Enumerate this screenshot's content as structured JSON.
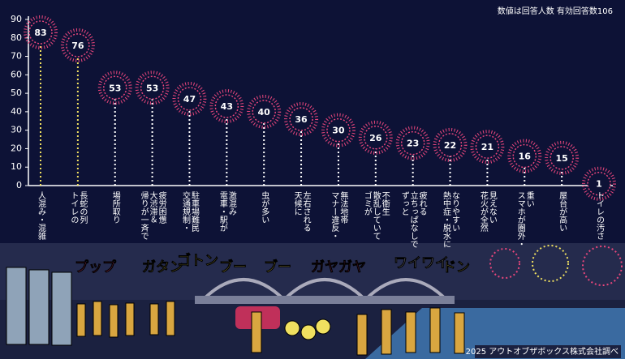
{
  "chart_data": {
    "type": "lollipop",
    "note": "数値は回答人数 有効回答数106",
    "source": "2025 アウトオブザボックス株式会社調べ",
    "categories": [
      "人混み・混雑",
      "トイレの\n長蛇の列",
      "場所取り",
      "帰りが一斉で\n大渋滞＆\n疲労困憊",
      "交通規制・\n駐車場難民",
      "電車・駅が\n激混み",
      "虫が多い",
      "天候に\n左右される",
      "マナー違反・\n無法地帯",
      "ゴミが\n散乱していて\n不衛生",
      "ずっと\n立ちっぱなしで\n疲れる",
      "熱中症・脱水に\nなりやすい",
      "花火が全然\n見えない",
      "スマホが圏外・\n重い",
      "屋台が高い",
      "トイレの汚さ"
    ],
    "values": [
      83,
      76,
      53,
      53,
      47,
      43,
      40,
      36,
      30,
      26,
      23,
      22,
      21,
      16,
      15,
      1
    ],
    "ylim": [
      0,
      90
    ],
    "yticks": [
      0,
      10,
      20,
      30,
      40,
      50,
      60,
      70,
      80,
      90
    ],
    "color": "#e8467c"
  },
  "illustration": {
    "sounds": [
      "プップ",
      "ガタン",
      "ゴトン",
      "ブー",
      "ブー",
      "ガヤガヤ",
      "ワイワイ",
      "ドン"
    ]
  }
}
